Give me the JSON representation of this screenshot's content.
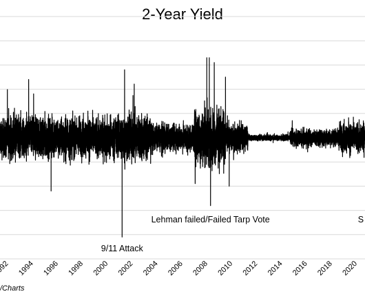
{
  "chart_data": {
    "type": "line",
    "title": "2-Year Yield",
    "xlabel": "",
    "ylabel": "",
    "x_tick_labels": [
      "1992",
      "1994",
      "1996",
      "1998",
      "2000",
      "2002",
      "2004",
      "2006",
      "2008",
      "2010",
      "2012",
      "2014",
      "2016",
      "2018",
      "2020"
    ],
    "xlim": [
      1991.9,
      2021.2
    ],
    "ylim": [
      -0.5,
      0.5
    ],
    "grid": "horizontal",
    "colors": {
      "line": "#000000",
      "grid": "#d9d9d9"
    },
    "volatility_regimes": [
      {
        "from": 1991.9,
        "to": 2001.5,
        "amplitude": 0.12
      },
      {
        "from": 2001.5,
        "to": 2004.0,
        "amplitude": 0.14
      },
      {
        "from": 2004.0,
        "to": 2007.5,
        "amplitude": 0.08
      },
      {
        "from": 2007.5,
        "to": 2010.0,
        "amplitude": 0.16
      },
      {
        "from": 2010.0,
        "to": 2011.8,
        "amplitude": 0.08
      },
      {
        "from": 2011.8,
        "to": 2015.2,
        "amplitude": 0.018
      },
      {
        "from": 2015.2,
        "to": 2019.0,
        "amplitude": 0.05
      },
      {
        "from": 2019.0,
        "to": 2021.2,
        "amplitude": 0.09
      }
    ],
    "spikes": [
      {
        "x": 1994.2,
        "y": 0.24
      },
      {
        "x": 1996.0,
        "y": -0.22
      },
      {
        "x": 2001.7,
        "y": -0.41
      },
      {
        "x": 2001.9,
        "y": 0.28
      },
      {
        "x": 2008.5,
        "y": 0.33
      },
      {
        "x": 2008.7,
        "y": 0.33
      },
      {
        "x": 2008.8,
        "y": -0.28
      },
      {
        "x": 2009.1,
        "y": 0.31
      },
      {
        "x": 2010.0,
        "y": 0.25
      },
      {
        "x": 2010.3,
        "y": -0.2
      }
    ],
    "annotations": [
      {
        "text": "9/11 Attack",
        "x": 2001.7,
        "y": -0.46
      },
      {
        "text": "Lehman failed/Failed Tarp Vote",
        "x": 2008.8,
        "y": -0.34
      },
      {
        "text": "S",
        "x": 2021.1,
        "y": -0.34
      }
    ]
  },
  "source_note": "/Charts"
}
